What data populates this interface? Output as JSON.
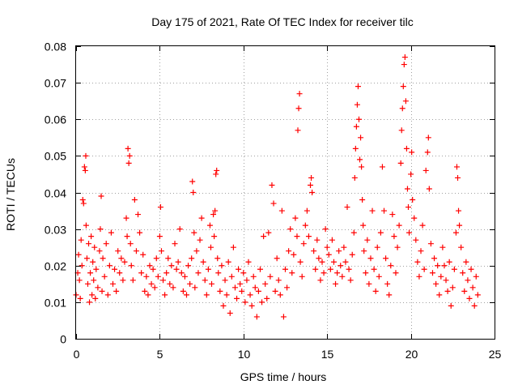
{
  "chart_data": {
    "type": "scatter",
    "title": "Day 175 of 2021, Rate Of TEC Index for receiver tilc",
    "xlabel": "GPS time / hours",
    "ylabel": "ROTI / TECUs",
    "xlim": [
      0,
      25
    ],
    "ylim": [
      0,
      0.08
    ],
    "x_ticks": [
      0,
      5,
      10,
      15,
      20,
      25
    ],
    "y_ticks": [
      0,
      0.01,
      0.02,
      0.03,
      0.04,
      0.05,
      0.06,
      0.07,
      0.08
    ],
    "x_tick_labels": [
      "0",
      "5",
      "10",
      "15",
      "20",
      "25"
    ],
    "y_tick_labels": [
      "0",
      "0.01",
      "0.02",
      "0.03",
      "0.04",
      "0.05",
      "0.06",
      "0.07",
      "0.08"
    ],
    "grid": true,
    "marker": "plus",
    "color": "#ff0000",
    "series": [
      {
        "points": [
          [
            0.0,
            0.012
          ],
          [
            0.1,
            0.018
          ],
          [
            0.15,
            0.023
          ],
          [
            0.2,
            0.016
          ],
          [
            0.25,
            0.011
          ],
          [
            0.3,
            0.027
          ],
          [
            0.35,
            0.02
          ],
          [
            0.4,
            0.038
          ],
          [
            0.45,
            0.037
          ],
          [
            0.5,
            0.047
          ],
          [
            0.55,
            0.046
          ],
          [
            0.58,
            0.05
          ],
          [
            0.6,
            0.031
          ],
          [
            0.65,
            0.022
          ],
          [
            0.7,
            0.015
          ],
          [
            0.75,
            0.026
          ],
          [
            0.8,
            0.01
          ],
          [
            0.85,
            0.018
          ],
          [
            0.9,
            0.028
          ],
          [
            0.95,
            0.012
          ],
          [
            1.0,
            0.021
          ],
          [
            1.05,
            0.016
          ],
          [
            1.1,
            0.025
          ],
          [
            1.15,
            0.011
          ],
          [
            1.2,
            0.019
          ],
          [
            1.3,
            0.014
          ],
          [
            1.4,
            0.024
          ],
          [
            1.45,
            0.03
          ],
          [
            1.5,
            0.039
          ],
          [
            1.55,
            0.013
          ],
          [
            1.6,
            0.022
          ],
          [
            1.7,
            0.017
          ],
          [
            1.8,
            0.026
          ],
          [
            1.9,
            0.012
          ],
          [
            2.0,
            0.02
          ],
          [
            2.1,
            0.029
          ],
          [
            2.2,
            0.015
          ],
          [
            2.3,
            0.019
          ],
          [
            2.4,
            0.013
          ],
          [
            2.5,
            0.024
          ],
          [
            2.6,
            0.018
          ],
          [
            2.7,
            0.022
          ],
          [
            2.8,
            0.016
          ],
          [
            2.9,
            0.021
          ],
          [
            3.0,
            0.033
          ],
          [
            3.05,
            0.028
          ],
          [
            3.1,
            0.052
          ],
          [
            3.15,
            0.048
          ],
          [
            3.2,
            0.05
          ],
          [
            3.25,
            0.026
          ],
          [
            3.3,
            0.02
          ],
          [
            3.4,
            0.016
          ],
          [
            3.5,
            0.038
          ],
          [
            3.6,
            0.024
          ],
          [
            3.7,
            0.034
          ],
          [
            3.8,
            0.029
          ],
          [
            3.9,
            0.018
          ],
          [
            4.0,
            0.023
          ],
          [
            4.1,
            0.013
          ],
          [
            4.2,
            0.017
          ],
          [
            4.3,
            0.012
          ],
          [
            4.4,
            0.02
          ],
          [
            4.5,
            0.015
          ],
          [
            4.6,
            0.019
          ],
          [
            4.7,
            0.014
          ],
          [
            4.8,
            0.022
          ],
          [
            4.9,
            0.017
          ],
          [
            5.0,
            0.028
          ],
          [
            5.05,
            0.036
          ],
          [
            5.1,
            0.024
          ],
          [
            5.2,
            0.016
          ],
          [
            5.3,
            0.012
          ],
          [
            5.4,
            0.018
          ],
          [
            5.5,
            0.022
          ],
          [
            5.6,
            0.015
          ],
          [
            5.7,
            0.02
          ],
          [
            5.8,
            0.014
          ],
          [
            5.9,
            0.026
          ],
          [
            6.0,
            0.019
          ],
          [
            6.1,
            0.021
          ],
          [
            6.2,
            0.03
          ],
          [
            6.3,
            0.018
          ],
          [
            6.4,
            0.013
          ],
          [
            6.5,
            0.017
          ],
          [
            6.6,
            0.012
          ],
          [
            6.7,
            0.02
          ],
          [
            6.8,
            0.015
          ],
          [
            6.9,
            0.022
          ],
          [
            6.95,
            0.043
          ],
          [
            7.0,
            0.04
          ],
          [
            7.05,
            0.029
          ],
          [
            7.1,
            0.014
          ],
          [
            7.2,
            0.024
          ],
          [
            7.3,
            0.018
          ],
          [
            7.4,
            0.027
          ],
          [
            7.5,
            0.033
          ],
          [
            7.6,
            0.021
          ],
          [
            7.7,
            0.016
          ],
          [
            7.8,
            0.012
          ],
          [
            7.9,
            0.019
          ],
          [
            8.0,
            0.031
          ],
          [
            8.05,
            0.025
          ],
          [
            8.1,
            0.015
          ],
          [
            8.2,
            0.034
          ],
          [
            8.25,
            0.028
          ],
          [
            8.3,
            0.035
          ],
          [
            8.35,
            0.045
          ],
          [
            8.4,
            0.046
          ],
          [
            8.45,
            0.022
          ],
          [
            8.5,
            0.018
          ],
          [
            8.6,
            0.013
          ],
          [
            8.7,
            0.02
          ],
          [
            8.8,
            0.009
          ],
          [
            8.9,
            0.016
          ],
          [
            9.0,
            0.012
          ],
          [
            9.1,
            0.021
          ],
          [
            9.2,
            0.007
          ],
          [
            9.3,
            0.017
          ],
          [
            9.4,
            0.025
          ],
          [
            9.5,
            0.014
          ],
          [
            9.6,
            0.011
          ],
          [
            9.7,
            0.019
          ],
          [
            9.8,
            0.015
          ],
          [
            9.9,
            0.013
          ],
          [
            10.0,
            0.018
          ],
          [
            10.1,
            0.01
          ],
          [
            10.2,
            0.016
          ],
          [
            10.3,
            0.021
          ],
          [
            10.4,
            0.012
          ],
          [
            10.5,
            0.009
          ],
          [
            10.6,
            0.017
          ],
          [
            10.7,
            0.014
          ],
          [
            10.8,
            0.006
          ],
          [
            10.9,
            0.013
          ],
          [
            11.0,
            0.019
          ],
          [
            11.1,
            0.01
          ],
          [
            11.2,
            0.028
          ],
          [
            11.3,
            0.015
          ],
          [
            11.4,
            0.011
          ],
          [
            11.5,
            0.029
          ],
          [
            11.6,
            0.017
          ],
          [
            11.7,
            0.042
          ],
          [
            11.8,
            0.037
          ],
          [
            11.9,
            0.013
          ],
          [
            12.0,
            0.022
          ],
          [
            12.1,
            0.016
          ],
          [
            12.2,
            0.012
          ],
          [
            12.3,
            0.035
          ],
          [
            12.4,
            0.006
          ],
          [
            12.5,
            0.019
          ],
          [
            12.6,
            0.014
          ],
          [
            12.7,
            0.024
          ],
          [
            12.8,
            0.03
          ],
          [
            12.9,
            0.018
          ],
          [
            13.0,
            0.023
          ],
          [
            13.1,
            0.033
          ],
          [
            13.2,
            0.028
          ],
          [
            13.25,
            0.057
          ],
          [
            13.3,
            0.063
          ],
          [
            13.35,
            0.067
          ],
          [
            13.4,
            0.021
          ],
          [
            13.5,
            0.017
          ],
          [
            13.6,
            0.026
          ],
          [
            13.7,
            0.031
          ],
          [
            13.8,
            0.035
          ],
          [
            13.9,
            0.028
          ],
          [
            14.0,
            0.042
          ],
          [
            14.05,
            0.044
          ],
          [
            14.1,
            0.04
          ],
          [
            14.2,
            0.024
          ],
          [
            14.3,
            0.019
          ],
          [
            14.4,
            0.027
          ],
          [
            14.5,
            0.022
          ],
          [
            14.6,
            0.016
          ],
          [
            14.7,
            0.021
          ],
          [
            14.8,
            0.018
          ],
          [
            14.9,
            0.03
          ],
          [
            15.0,
            0.025
          ],
          [
            15.1,
            0.023
          ],
          [
            15.2,
            0.019
          ],
          [
            15.3,
            0.027
          ],
          [
            15.4,
            0.021
          ],
          [
            15.5,
            0.015
          ],
          [
            15.6,
            0.018
          ],
          [
            15.7,
            0.024
          ],
          [
            15.8,
            0.02
          ],
          [
            15.9,
            0.017
          ],
          [
            16.0,
            0.025
          ],
          [
            16.1,
            0.021
          ],
          [
            16.2,
            0.036
          ],
          [
            16.3,
            0.019
          ],
          [
            16.4,
            0.016
          ],
          [
            16.5,
            0.023
          ],
          [
            16.6,
            0.029
          ],
          [
            16.65,
            0.044
          ],
          [
            16.7,
            0.052
          ],
          [
            16.75,
            0.058
          ],
          [
            16.8,
            0.064
          ],
          [
            16.85,
            0.069
          ],
          [
            16.9,
            0.06
          ],
          [
            16.95,
            0.049
          ],
          [
            17.0,
            0.055
          ],
          [
            17.05,
            0.047
          ],
          [
            17.1,
            0.038
          ],
          [
            17.15,
            0.031
          ],
          [
            17.2,
            0.024
          ],
          [
            17.3,
            0.018
          ],
          [
            17.4,
            0.027
          ],
          [
            17.5,
            0.015
          ],
          [
            17.6,
            0.022
          ],
          [
            17.7,
            0.035
          ],
          [
            17.8,
            0.019
          ],
          [
            17.9,
            0.013
          ],
          [
            18.0,
            0.025
          ],
          [
            18.1,
            0.017
          ],
          [
            18.2,
            0.029
          ],
          [
            18.3,
            0.047
          ],
          [
            18.4,
            0.035
          ],
          [
            18.5,
            0.022
          ],
          [
            18.6,
            0.015
          ],
          [
            18.7,
            0.012
          ],
          [
            18.8,
            0.02
          ],
          [
            18.9,
            0.034
          ],
          [
            19.0,
            0.028
          ],
          [
            19.1,
            0.018
          ],
          [
            19.2,
            0.025
          ],
          [
            19.3,
            0.031
          ],
          [
            19.4,
            0.048
          ],
          [
            19.45,
            0.057
          ],
          [
            19.5,
            0.063
          ],
          [
            19.55,
            0.069
          ],
          [
            19.6,
            0.075
          ],
          [
            19.65,
            0.077
          ],
          [
            19.7,
            0.065
          ],
          [
            19.75,
            0.052
          ],
          [
            19.8,
            0.041
          ],
          [
            19.85,
            0.036
          ],
          [
            19.9,
            0.029
          ],
          [
            20.0,
            0.045
          ],
          [
            20.05,
            0.051
          ],
          [
            20.1,
            0.038
          ],
          [
            20.2,
            0.033
          ],
          [
            20.3,
            0.027
          ],
          [
            20.4,
            0.021
          ],
          [
            20.5,
            0.017
          ],
          [
            20.6,
            0.024
          ],
          [
            20.7,
            0.031
          ],
          [
            20.8,
            0.019
          ],
          [
            20.9,
            0.046
          ],
          [
            21.0,
            0.051
          ],
          [
            21.05,
            0.055
          ],
          [
            21.1,
            0.041
          ],
          [
            21.2,
            0.026
          ],
          [
            21.3,
            0.018
          ],
          [
            21.4,
            0.022
          ],
          [
            21.5,
            0.015
          ],
          [
            21.6,
            0.02
          ],
          [
            21.7,
            0.012
          ],
          [
            21.8,
            0.017
          ],
          [
            21.9,
            0.025
          ],
          [
            22.0,
            0.02
          ],
          [
            22.1,
            0.016
          ],
          [
            22.2,
            0.013
          ],
          [
            22.3,
            0.021
          ],
          [
            22.4,
            0.009
          ],
          [
            22.5,
            0.014
          ],
          [
            22.6,
            0.019
          ],
          [
            22.7,
            0.029
          ],
          [
            22.75,
            0.047
          ],
          [
            22.8,
            0.044
          ],
          [
            22.85,
            0.035
          ],
          [
            22.9,
            0.031
          ],
          [
            23.0,
            0.025
          ],
          [
            23.1,
            0.018
          ],
          [
            23.2,
            0.013
          ],
          [
            23.3,
            0.021
          ],
          [
            23.4,
            0.016
          ],
          [
            23.5,
            0.011
          ],
          [
            23.6,
            0.019
          ],
          [
            23.7,
            0.014
          ],
          [
            23.8,
            0.009
          ],
          [
            23.9,
            0.017
          ],
          [
            24.0,
            0.012
          ]
        ]
      }
    ]
  }
}
